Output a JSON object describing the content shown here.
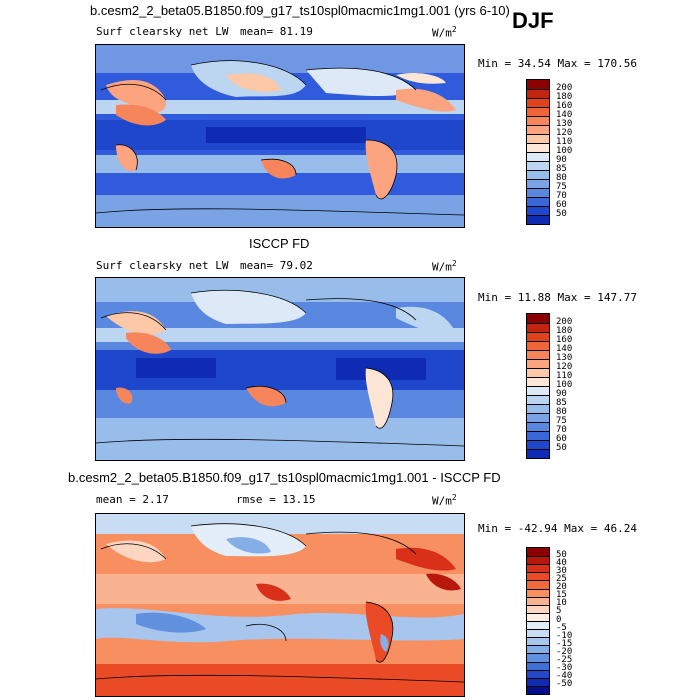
{
  "season": "DJF",
  "panels": [
    {
      "title": "b.cesm2_2_beta05.B1850.f09_g17_ts10spl0macmic1mg1.001 (yrs 6-10)",
      "variable": "Surf clearsky net LW",
      "stat_text": "mean=  81.19",
      "units": "W/m",
      "units_exp": "2",
      "minmax": "Min =  34.54 Max = 170.56",
      "colorbar": {
        "labels": [
          "200",
          "180",
          "160",
          "140",
          "130",
          "120",
          "110",
          "100",
          "90",
          "85",
          "80",
          "75",
          "70",
          "60",
          "50"
        ],
        "colors": [
          "#8b0000",
          "#c2240f",
          "#e0421c",
          "#f0643a",
          "#f7855c",
          "#fba47f",
          "#fdc8a8",
          "#fde6d6",
          "#dde9f6",
          "#bcd5f1",
          "#99bdeb",
          "#7aa3e6",
          "#5a87e0",
          "#3b67d8",
          "#1f47cc",
          "#0f2ab3"
        ]
      },
      "map_style": "model"
    },
    {
      "title": "ISCCP FD",
      "variable": "Surf clearsky net LW",
      "stat_text": "mean=  79.02",
      "units": "W/m",
      "units_exp": "2",
      "minmax": "Min =  11.88 Max = 147.77",
      "colorbar": {
        "labels": [
          "200",
          "180",
          "160",
          "140",
          "130",
          "120",
          "110",
          "100",
          "90",
          "85",
          "80",
          "75",
          "70",
          "60",
          "50"
        ],
        "colors": [
          "#8b0000",
          "#c2240f",
          "#e0421c",
          "#f0643a",
          "#f7855c",
          "#fba47f",
          "#fdc8a8",
          "#fde6d6",
          "#dde9f6",
          "#bcd5f1",
          "#99bdeb",
          "#7aa3e6",
          "#5a87e0",
          "#3b67d8",
          "#1f47cc",
          "#0f2ab3"
        ]
      },
      "map_style": "obs"
    },
    {
      "title": "b.cesm2_2_beta05.B1850.f09_g17_ts10spl0macmic1mg1.001 - ISCCP FD",
      "variable": "",
      "stat_text": "mean =    2.17",
      "stat_text2": "rmse =   13.15",
      "units": "W/m",
      "units_exp": "2",
      "minmax": "Min = -42.94 Max =  46.24",
      "colorbar": {
        "labels": [
          "50",
          "40",
          "30",
          "25",
          "20",
          "15",
          "10",
          "5",
          "0",
          "-5",
          "-10",
          "-15",
          "-20",
          "-25",
          "-30",
          "-40",
          "-50"
        ],
        "colors": [
          "#8b0000",
          "#b8180b",
          "#d9301a",
          "#eb4a26",
          "#f26a3c",
          "#f78f60",
          "#fab390",
          "#fdd6c2",
          "#fdeee6",
          "#e4eef9",
          "#c8dcf3",
          "#a8c6ed",
          "#86aee6",
          "#6190df",
          "#3f70d6",
          "#2448c8",
          "#102ab0",
          "#050f8a"
        ]
      },
      "map_style": "diff"
    }
  ]
}
